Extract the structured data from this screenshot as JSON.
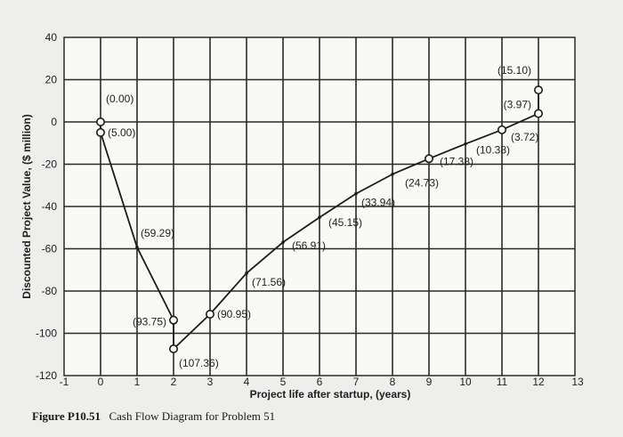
{
  "chart_data": {
    "type": "line",
    "title": "",
    "xlabel": "Project life after startup, (years)",
    "ylabel": "Discounted Project Value, ($ million)",
    "xlim": [
      -1,
      13
    ],
    "ylim": [
      -120,
      40
    ],
    "x_ticks": [
      "-1",
      "0",
      "1",
      "2",
      "3",
      "4",
      "5",
      "6",
      "7",
      "8",
      "9",
      "10",
      "11",
      "12",
      "13"
    ],
    "y_ticks": [
      "40",
      "20",
      "0",
      "-20",
      "-40",
      "-60",
      "-80",
      "-100",
      "-120"
    ],
    "grid": true,
    "series": [
      {
        "x": [
          0,
          0,
          1,
          2,
          2,
          3,
          4,
          5,
          6,
          7,
          8,
          9,
          10,
          11,
          12,
          12
        ],
        "y": [
          0.0,
          -5.0,
          -59.29,
          -93.75,
          -107.36,
          -90.95,
          -71.56,
          -56.91,
          -45.15,
          -33.94,
          -24.73,
          -17.38,
          -10.38,
          -3.72,
          3.97,
          15.1
        ],
        "labels": [
          "(0.00)",
          "(5.00)",
          "(59.29)",
          "(93.75)",
          "(107.36)",
          "(90.95)",
          "(71.56)",
          "(56.91)",
          "(45.15)",
          "(33.94)",
          "(24.73)",
          "(17.38)",
          "(10.38)",
          "(3.72)",
          "(3.97)",
          "(15.10)"
        ],
        "markers": [
          "circle",
          "circle",
          "none",
          "circle",
          "circle",
          "circle",
          "none",
          "none",
          "none",
          "none",
          "none",
          "circle",
          "none",
          "circle",
          "circle",
          "circle"
        ]
      }
    ]
  },
  "caption": {
    "label": "Figure P10.51",
    "text": "Cash Flow Diagram for Problem 51"
  },
  "colors": {
    "background": "#eeeeec",
    "plot_background": "#f9f9f6",
    "line": "#1c1c1c"
  }
}
